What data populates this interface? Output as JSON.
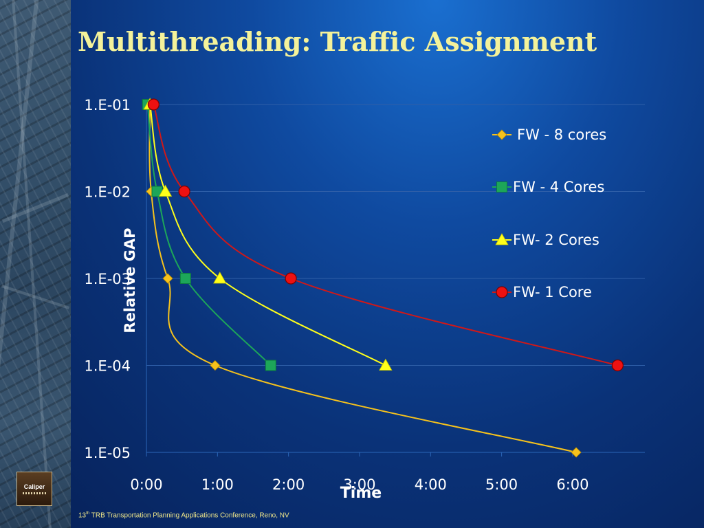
{
  "slide": {
    "title": "Multithreading: Traffic Assignment",
    "footer": {
      "ordinal": "13",
      "suffix": "th",
      "text": " TRB Transportation Planning Applications Conference, Reno, NV"
    },
    "logo_text": "Caliper"
  },
  "colors": {
    "title": "#f4f29a",
    "axis_text": "#ffffff",
    "gridline": "#2f5fa8"
  },
  "chart_data": {
    "type": "scatter",
    "title": "",
    "xlabel": "Time",
    "ylabel": "Relative GAP",
    "x_unit": "minutes",
    "xlim": [
      0,
      420
    ],
    "x_ticks": [
      0,
      60,
      120,
      180,
      240,
      300,
      360
    ],
    "x_tick_labels": [
      "0:00",
      "1:00",
      "2:00",
      "3:00",
      "4:00",
      "5:00",
      "6:00"
    ],
    "y_scale": "log",
    "ylim": [
      1e-05,
      0.1
    ],
    "y_ticks": [
      0.1,
      0.01,
      0.001,
      0.0001,
      1e-05
    ],
    "y_tick_labels": [
      "1.E-01",
      "1.E-02",
      "1.E-03",
      "1.E-04",
      "1.E-05"
    ],
    "grid": "horizontal",
    "legend_position": "right",
    "series": [
      {
        "name": "FW - 8 cores",
        "marker": "diamond",
        "color": "#f6c21c",
        "line_color": "#f6c21c",
        "points": [
          [
            3,
            0.1
          ],
          [
            4,
            0.01
          ],
          [
            18,
            0.001
          ],
          [
            58,
            0.0001
          ],
          [
            363,
            1e-05
          ]
        ]
      },
      {
        "name": "FW - 4 Cores",
        "marker": "square",
        "color": "#1da659",
        "line_color": "#1da659",
        "points": [
          [
            1,
            0.1
          ],
          [
            9,
            0.01
          ],
          [
            33,
            0.001
          ],
          [
            105,
            0.0001
          ]
        ]
      },
      {
        "name": "FW- 2 Cores",
        "marker": "triangle",
        "color": "#ffff1a",
        "line_color": "#ffff1a",
        "points": [
          [
            3,
            0.1
          ],
          [
            16,
            0.01
          ],
          [
            62,
            0.001
          ],
          [
            202,
            0.0001
          ]
        ]
      },
      {
        "name": "FW- 1 Core",
        "marker": "circle",
        "color": "#ee1111",
        "line_color": "#d01818",
        "points": [
          [
            6,
            0.1
          ],
          [
            32,
            0.01
          ],
          [
            122,
            0.001
          ],
          [
            398,
            0.0001
          ]
        ]
      }
    ]
  }
}
